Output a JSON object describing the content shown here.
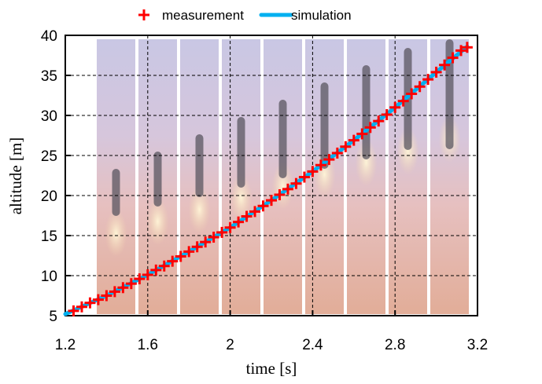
{
  "chart_data": {
    "type": "line",
    "title": "",
    "xlabel": "time [s]",
    "ylabel": "altitude [m]",
    "xlim": [
      1.2,
      3.2
    ],
    "ylim": [
      5,
      40
    ],
    "xticks": [
      "1.2",
      "1.6",
      "2",
      "2.4",
      "2.8",
      "3.2"
    ],
    "yticks": [
      "5",
      "10",
      "15",
      "20",
      "25",
      "30",
      "35",
      "40"
    ],
    "grid": true,
    "legend_placement": "top-center",
    "background": "sequence of rocket launch photo frames",
    "series": [
      {
        "name": "measurement",
        "style": "markers",
        "marker": "plus",
        "color": "#ff0000",
        "x": [
          1.24,
          1.28,
          1.32,
          1.36,
          1.4,
          1.44,
          1.48,
          1.52,
          1.56,
          1.6,
          1.64,
          1.68,
          1.72,
          1.76,
          1.8,
          1.84,
          1.88,
          1.92,
          1.96,
          2.0,
          2.04,
          2.08,
          2.12,
          2.16,
          2.2,
          2.24,
          2.28,
          2.32,
          2.36,
          2.4,
          2.44,
          2.48,
          2.52,
          2.56,
          2.6,
          2.64,
          2.68,
          2.72,
          2.76,
          2.8,
          2.84,
          2.88,
          2.92,
          2.96,
          3.0,
          3.04,
          3.08,
          3.12,
          3.15
        ],
        "y": [
          5.6,
          6.1,
          6.6,
          7.0,
          7.5,
          8.0,
          8.5,
          9.0,
          9.6,
          10.1,
          10.7,
          11.2,
          11.8,
          12.4,
          13.0,
          13.6,
          14.2,
          14.8,
          15.4,
          16.0,
          16.7,
          17.4,
          18.0,
          18.7,
          19.4,
          20.1,
          20.8,
          21.5,
          22.3,
          23.0,
          23.8,
          24.5,
          25.3,
          26.1,
          26.9,
          27.7,
          28.5,
          29.3,
          30.1,
          31.0,
          31.8,
          32.7,
          33.6,
          34.5,
          35.4,
          36.3,
          37.2,
          38.1,
          38.5
        ]
      },
      {
        "name": "simulation",
        "style": "line",
        "color": "#00b0f0",
        "x": [
          1.2,
          1.4,
          1.6,
          1.8,
          2.0,
          2.2,
          2.4,
          2.6,
          2.8,
          3.0,
          3.15
        ],
        "y": [
          5.2,
          7.5,
          10.1,
          13.0,
          16.0,
          19.4,
          23.0,
          26.9,
          31.0,
          35.4,
          38.6
        ]
      }
    ]
  }
}
